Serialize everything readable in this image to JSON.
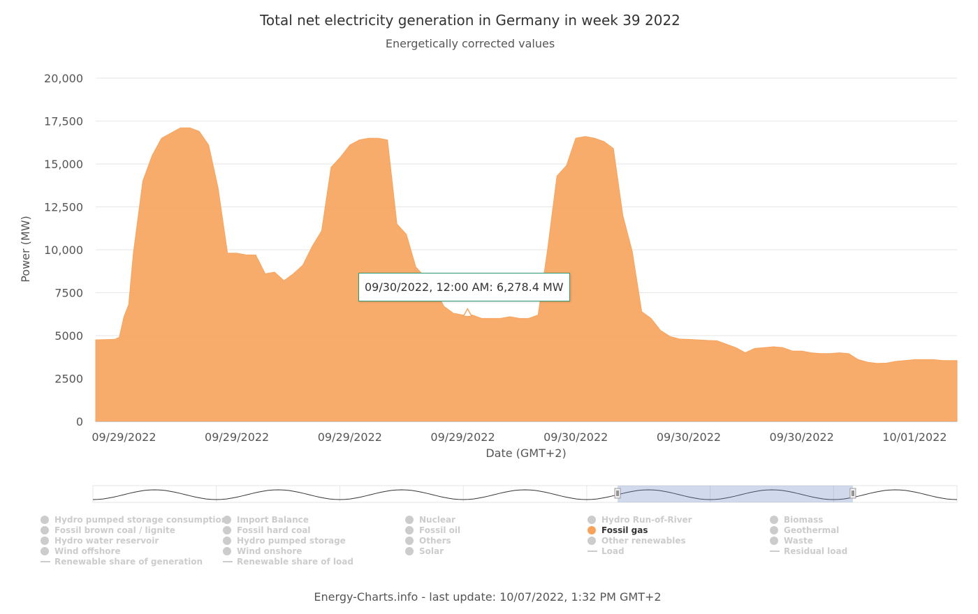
{
  "chart_data": {
    "type": "area",
    "title": "Total net electricity generation in Germany in week 39 2022",
    "subtitle": "Energetically corrected values",
    "xlabel": "Date (GMT+2)",
    "ylabel": "Power (MW)",
    "ylim": [
      0,
      20000
    ],
    "yticks": [
      "0",
      "2500",
      "5000",
      "7500",
      "10,000",
      "12,500",
      "15,000",
      "17,500",
      "20,000"
    ],
    "ytick_values": [
      0,
      2500,
      5000,
      7500,
      10000,
      12500,
      15000,
      17500,
      20000
    ],
    "xtick_labels": [
      "09/29/2022",
      "09/29/2022",
      "09/29/2022",
      "09/29/2022",
      "09/30/2022",
      "09/30/2022",
      "09/30/2022",
      "10/01/2022"
    ],
    "x_unit": "hours",
    "xlim": [
      0,
      45.75
    ],
    "xtick_hours": [
      1.5,
      7.5,
      13.5,
      19.5,
      25.5,
      31.5,
      37.5,
      43.5
    ],
    "series": [
      {
        "name": "Fossil gas",
        "color": "#f7a35c",
        "x": [
          0,
          1,
          1.25,
          1.5,
          1.75,
          2,
          2.5,
          3,
          3.5,
          4,
          4.5,
          5,
          5.5,
          6,
          6.5,
          7,
          7.5,
          8,
          8.5,
          9,
          9.5,
          10,
          10.5,
          11,
          11.5,
          12,
          12.5,
          13,
          13.5,
          14,
          14.5,
          15,
          15.5,
          16,
          16.5,
          17,
          17.5,
          18,
          18.5,
          19,
          19.5,
          20,
          20.5,
          21,
          21.5,
          22,
          22.5,
          23,
          23.5,
          24,
          24.5,
          25,
          25.5,
          26,
          26.5,
          27,
          27.5,
          28,
          28.5,
          29,
          29.5,
          30,
          30.5,
          31,
          31.5,
          32,
          32.5,
          33,
          33.5,
          34,
          34.5,
          35,
          35.5,
          36,
          36.5,
          37,
          37.5,
          38,
          38.5,
          39,
          39.5,
          40,
          40.5,
          41,
          41.5,
          42,
          42.5,
          43,
          43.5,
          44,
          44.5,
          45,
          45.75
        ],
        "values": [
          4750,
          4780,
          4900,
          6100,
          6800,
          9800,
          14000,
          15500,
          16500,
          16800,
          17100,
          17100,
          16900,
          16100,
          13600,
          9800,
          9800,
          9700,
          9700,
          8600,
          8700,
          8200,
          8600,
          9100,
          10200,
          11100,
          14800,
          15400,
          16100,
          16400,
          16500,
          16500,
          16400,
          11500,
          10900,
          9000,
          8400,
          7700,
          6700,
          6300,
          6200,
          6200,
          6000,
          6000,
          6000,
          6100,
          6000,
          6000,
          6200,
          10000,
          14300,
          14900,
          16500,
          16600,
          16500,
          16300,
          15900,
          12000,
          9900,
          6400,
          6000,
          5300,
          4950,
          4800,
          4780,
          4750,
          4720,
          4700,
          4500,
          4300,
          4000,
          4250,
          4300,
          4350,
          4300,
          4100,
          4100,
          4000,
          3950,
          3950,
          4000,
          3950,
          3600,
          3450,
          3380,
          3400,
          3500,
          3550,
          3600,
          3600,
          3600,
          3550,
          3550
        ]
      }
    ],
    "tooltip": {
      "text": "09/30/2022, 12:00 AM: 6,278.4 MW",
      "x_hours": 19.75,
      "value": 6278.4
    },
    "navigator": {
      "total_hours": 168,
      "window_start_hour": 102,
      "window_end_hour": 147.75
    }
  },
  "legend": [
    {
      "label": "Hydro pumped storage consumption",
      "kind": "dot",
      "active": false
    },
    {
      "label": "Import Balance",
      "kind": "dot",
      "active": false
    },
    {
      "label": "Nuclear",
      "kind": "dot",
      "active": false
    },
    {
      "label": "Hydro Run-of-River",
      "kind": "dot",
      "active": false
    },
    {
      "label": "Biomass",
      "kind": "dot",
      "active": false
    },
    {
      "label": "Fossil brown coal / lignite",
      "kind": "dot",
      "active": false
    },
    {
      "label": "Fossil hard coal",
      "kind": "dot",
      "active": false
    },
    {
      "label": "Fossil oil",
      "kind": "dot",
      "active": false
    },
    {
      "label": "Fossil gas",
      "kind": "dot",
      "active": true
    },
    {
      "label": "Geothermal",
      "kind": "dot",
      "active": false
    },
    {
      "label": "Hydro water reservoir",
      "kind": "dot",
      "active": false
    },
    {
      "label": "Hydro pumped storage",
      "kind": "dot",
      "active": false
    },
    {
      "label": "Others",
      "kind": "dot",
      "active": false
    },
    {
      "label": "Other renewables",
      "kind": "dot",
      "active": false
    },
    {
      "label": "Waste",
      "kind": "dot",
      "active": false
    },
    {
      "label": "Wind offshore",
      "kind": "dot",
      "active": false
    },
    {
      "label": "Wind onshore",
      "kind": "dot",
      "active": false
    },
    {
      "label": "Solar",
      "kind": "dot",
      "active": false
    },
    {
      "label": "Load",
      "kind": "line",
      "active": false
    },
    {
      "label": "Residual load",
      "kind": "line",
      "active": false
    },
    {
      "label": "Renewable share of generation",
      "kind": "line",
      "active": false
    },
    {
      "label": "Renewable share of load",
      "kind": "line",
      "active": false
    }
  ],
  "footer": "Energy-Charts.info - last update: 10/07/2022, 1:32 PM GMT+2"
}
